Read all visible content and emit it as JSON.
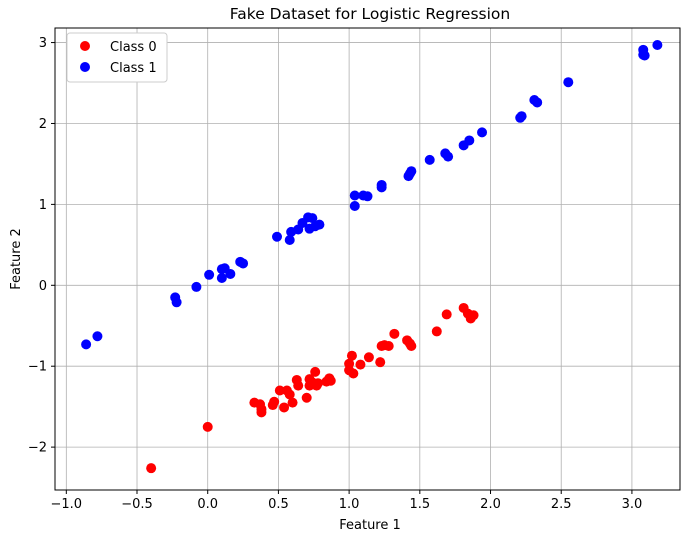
{
  "chart_data": {
    "type": "scatter",
    "title": "Fake Dataset for Logistic Regression",
    "xlabel": "Feature 1",
    "ylabel": "Feature 2",
    "xlim": [
      -1.08,
      3.34
    ],
    "ylim": [
      -2.53,
      3.18
    ],
    "xticks": [
      -1.0,
      -0.5,
      0.0,
      0.5,
      1.0,
      1.5,
      2.0,
      2.5,
      3.0
    ],
    "xtick_labels": [
      "−1.0",
      "−0.5",
      "0.0",
      "0.5",
      "1.0",
      "1.5",
      "2.0",
      "2.5",
      "3.0"
    ],
    "yticks": [
      -2,
      -1,
      0,
      1,
      2,
      3
    ],
    "ytick_labels": [
      "−2",
      "−1",
      "0",
      "1",
      "2",
      "3"
    ],
    "grid": true,
    "legend_position": "top-left",
    "series": [
      {
        "name": "Class 0",
        "color": "#ff0000",
        "points": [
          [
            -0.4,
            -2.26
          ],
          [
            0.0,
            -1.75
          ],
          [
            0.33,
            -1.45
          ],
          [
            0.37,
            -1.47
          ],
          [
            0.38,
            -1.53
          ],
          [
            0.38,
            -1.57
          ],
          [
            0.46,
            -1.48
          ],
          [
            0.47,
            -1.44
          ],
          [
            0.51,
            -1.3
          ],
          [
            0.54,
            -1.51
          ],
          [
            0.56,
            -1.3
          ],
          [
            0.58,
            -1.35
          ],
          [
            0.6,
            -1.45
          ],
          [
            0.63,
            -1.17
          ],
          [
            0.64,
            -1.24
          ],
          [
            0.7,
            -1.39
          ],
          [
            0.72,
            -1.24
          ],
          [
            0.72,
            -1.16
          ],
          [
            0.74,
            -1.2
          ],
          [
            0.76,
            -1.07
          ],
          [
            0.77,
            -1.24
          ],
          [
            0.78,
            -1.21
          ],
          [
            0.84,
            -1.19
          ],
          [
            0.86,
            -1.15
          ],
          [
            0.87,
            -1.18
          ],
          [
            1.0,
            -0.97
          ],
          [
            1.0,
            -1.05
          ],
          [
            1.02,
            -0.87
          ],
          [
            1.03,
            -1.09
          ],
          [
            1.08,
            -0.98
          ],
          [
            1.14,
            -0.89
          ],
          [
            1.22,
            -0.95
          ],
          [
            1.23,
            -0.75
          ],
          [
            1.25,
            -0.74
          ],
          [
            1.28,
            -0.75
          ],
          [
            1.32,
            -0.6
          ],
          [
            1.41,
            -0.68
          ],
          [
            1.43,
            -0.72
          ],
          [
            1.44,
            -0.75
          ],
          [
            1.62,
            -0.57
          ],
          [
            1.69,
            -0.36
          ],
          [
            1.81,
            -0.28
          ],
          [
            1.84,
            -0.35
          ],
          [
            1.86,
            -0.41
          ],
          [
            1.88,
            -0.37
          ]
        ]
      },
      {
        "name": "Class 1",
        "color": "#0000ff",
        "points": [
          [
            -0.86,
            -0.73
          ],
          [
            -0.78,
            -0.63
          ],
          [
            -0.23,
            -0.15
          ],
          [
            -0.22,
            -0.21
          ],
          [
            -0.08,
            -0.02
          ],
          [
            0.01,
            0.13
          ],
          [
            0.1,
            0.09
          ],
          [
            0.1,
            0.2
          ],
          [
            0.12,
            0.21
          ],
          [
            0.16,
            0.14
          ],
          [
            0.23,
            0.29
          ],
          [
            0.25,
            0.27
          ],
          [
            0.49,
            0.6
          ],
          [
            0.58,
            0.56
          ],
          [
            0.59,
            0.66
          ],
          [
            0.64,
            0.69
          ],
          [
            0.67,
            0.77
          ],
          [
            0.71,
            0.84
          ],
          [
            0.72,
            0.7
          ],
          [
            0.74,
            0.83
          ],
          [
            0.76,
            0.73
          ],
          [
            0.79,
            0.75
          ],
          [
            1.04,
            0.98
          ],
          [
            1.04,
            1.11
          ],
          [
            1.1,
            1.11
          ],
          [
            1.13,
            1.1
          ],
          [
            1.23,
            1.21
          ],
          [
            1.23,
            1.24
          ],
          [
            1.42,
            1.35
          ],
          [
            1.43,
            1.38
          ],
          [
            1.44,
            1.41
          ],
          [
            1.57,
            1.55
          ],
          [
            1.68,
            1.63
          ],
          [
            1.7,
            1.59
          ],
          [
            1.81,
            1.73
          ],
          [
            1.85,
            1.79
          ],
          [
            1.94,
            1.89
          ],
          [
            2.21,
            2.07
          ],
          [
            2.22,
            2.09
          ],
          [
            2.31,
            2.29
          ],
          [
            2.33,
            2.26
          ],
          [
            2.55,
            2.51
          ],
          [
            3.08,
            2.85
          ],
          [
            3.08,
            2.91
          ],
          [
            3.09,
            2.84
          ],
          [
            3.18,
            2.97
          ]
        ]
      }
    ]
  }
}
